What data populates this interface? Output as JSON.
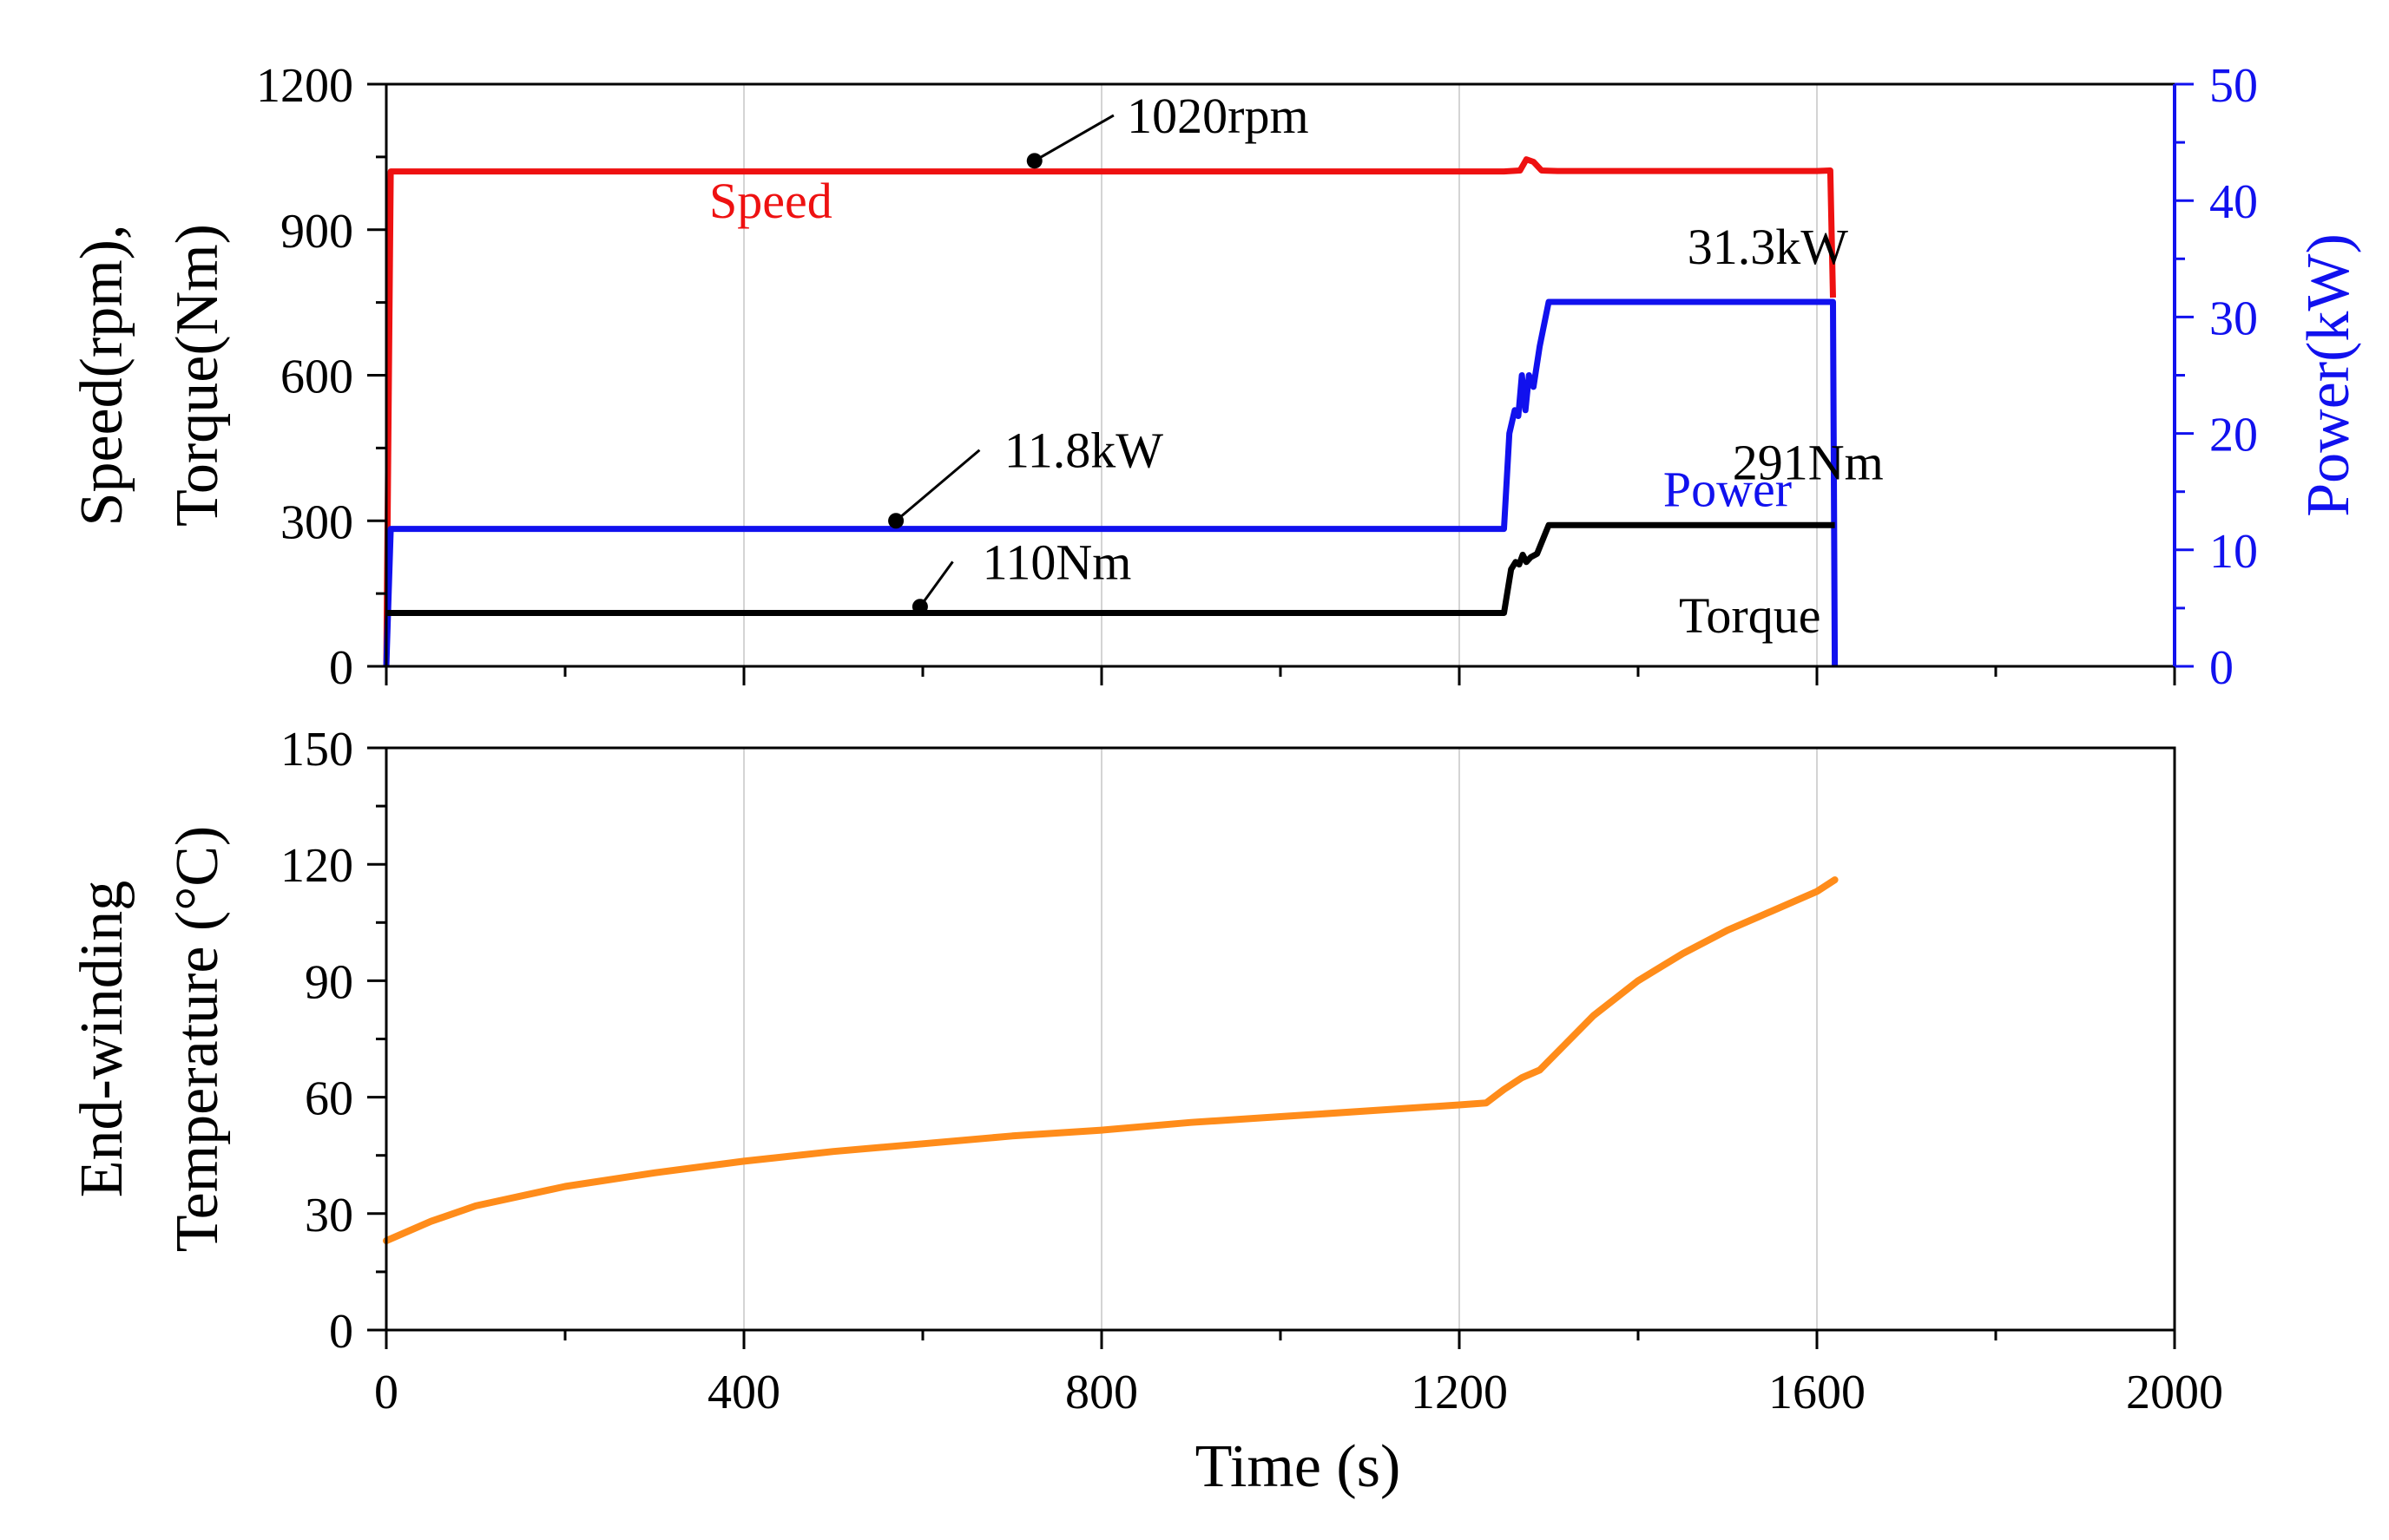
{
  "chart_data": [
    {
      "type": "line",
      "panel": "top",
      "title": "",
      "xlabel": "Time (s)",
      "xlim": [
        0,
        2000
      ],
      "xticks": [
        0,
        400,
        800,
        1200,
        1600,
        2000
      ],
      "ylabel_line1": "Speed(rpm),",
      "ylabel_line2": "Torque(Nm)",
      "ylim": [
        0,
        1200
      ],
      "yticks": [
        0,
        300,
        600,
        900,
        1200
      ],
      "y2label": "Power(kW)",
      "y2lim": [
        0,
        50
      ],
      "y2ticks": [
        0,
        10,
        20,
        30,
        40,
        50
      ],
      "grid": true,
      "series": [
        {
          "name": "Speed",
          "axis": "left",
          "color": "#ee1111",
          "label": "Speed",
          "points": [
            [
              0,
              0
            ],
            [
              5,
              1020
            ],
            [
              1250,
              1020
            ],
            [
              1268,
              1022
            ],
            [
              1275,
              1045
            ],
            [
              1283,
              1040
            ],
            [
              1292,
              1022
            ],
            [
              1310,
              1021
            ],
            [
              1600,
              1021
            ],
            [
              1615,
              1022
            ],
            [
              1618,
              760
            ]
          ]
        },
        {
          "name": "Power",
          "axis": "right",
          "color": "#1111ee",
          "label": "Power",
          "points": [
            [
              0,
              0
            ],
            [
              5,
              11.8
            ],
            [
              1250,
              11.8
            ],
            [
              1256,
              20
            ],
            [
              1262,
              22
            ],
            [
              1266,
              21.5
            ],
            [
              1270,
              25
            ],
            [
              1274,
              22
            ],
            [
              1278,
              25
            ],
            [
              1283,
              24
            ],
            [
              1290,
              27.5
            ],
            [
              1300,
              31.3
            ],
            [
              1618,
              31.3
            ],
            [
              1620,
              0
            ]
          ]
        },
        {
          "name": "Torque",
          "axis": "left",
          "color": "#000000",
          "label": "Torque",
          "points": [
            [
              0,
              110
            ],
            [
              1250,
              110
            ],
            [
              1258,
              200
            ],
            [
              1263,
              215
            ],
            [
              1267,
              210
            ],
            [
              1271,
              230
            ],
            [
              1275,
              215
            ],
            [
              1280,
              225
            ],
            [
              1287,
              232
            ],
            [
              1300,
              291
            ],
            [
              1620,
              291
            ]
          ]
        }
      ],
      "annotations": [
        {
          "text": "1020rpm",
          "axis": "left",
          "marker": [
            725,
            1042
          ],
          "label_at": [
            930,
            1100
          ]
        },
        {
          "text": "11.8kW",
          "axis": "left",
          "marker": [
            570,
            300
          ],
          "label_at": [
            780,
            410
          ]
        },
        {
          "text": "110Nm",
          "axis": "left",
          "marker": [
            597,
            123
          ],
          "label_at": [
            750,
            180
          ]
        },
        {
          "text": "31.3kW",
          "axis": "left",
          "label_at": [
            1545,
            830
          ]
        },
        {
          "text": "291Nm",
          "axis": "left",
          "label_at": [
            1590,
            385
          ]
        }
      ]
    },
    {
      "type": "line",
      "panel": "bottom",
      "title": "",
      "xlabel": "Time (s)",
      "xlim": [
        0,
        2000
      ],
      "xticks": [
        0,
        400,
        800,
        1200,
        1600,
        2000
      ],
      "ylabel_line1": "End-winding",
      "ylabel_line2": "Temperature (°C)",
      "ylim": [
        0,
        150
      ],
      "yticks": [
        0,
        30,
        60,
        90,
        120,
        150
      ],
      "grid": true,
      "series": [
        {
          "name": "End-winding Temperature",
          "color": "#ff8c1a",
          "points": [
            [
              0,
              23
            ],
            [
              50,
              28
            ],
            [
              100,
              32
            ],
            [
              200,
              37
            ],
            [
              300,
              40.5
            ],
            [
              400,
              43.5
            ],
            [
              500,
              46
            ],
            [
              600,
              48
            ],
            [
              700,
              50
            ],
            [
              800,
              51.5
            ],
            [
              900,
              53.5
            ],
            [
              1000,
              55
            ],
            [
              1100,
              56.5
            ],
            [
              1200,
              58
            ],
            [
              1230,
              58.5
            ],
            [
              1250,
              62
            ],
            [
              1270,
              65
            ],
            [
              1290,
              67
            ],
            [
              1320,
              74
            ],
            [
              1350,
              81
            ],
            [
              1400,
              90
            ],
            [
              1450,
              97
            ],
            [
              1500,
              103
            ],
            [
              1550,
              108
            ],
            [
              1600,
              113
            ],
            [
              1620,
              116
            ]
          ]
        }
      ]
    }
  ]
}
